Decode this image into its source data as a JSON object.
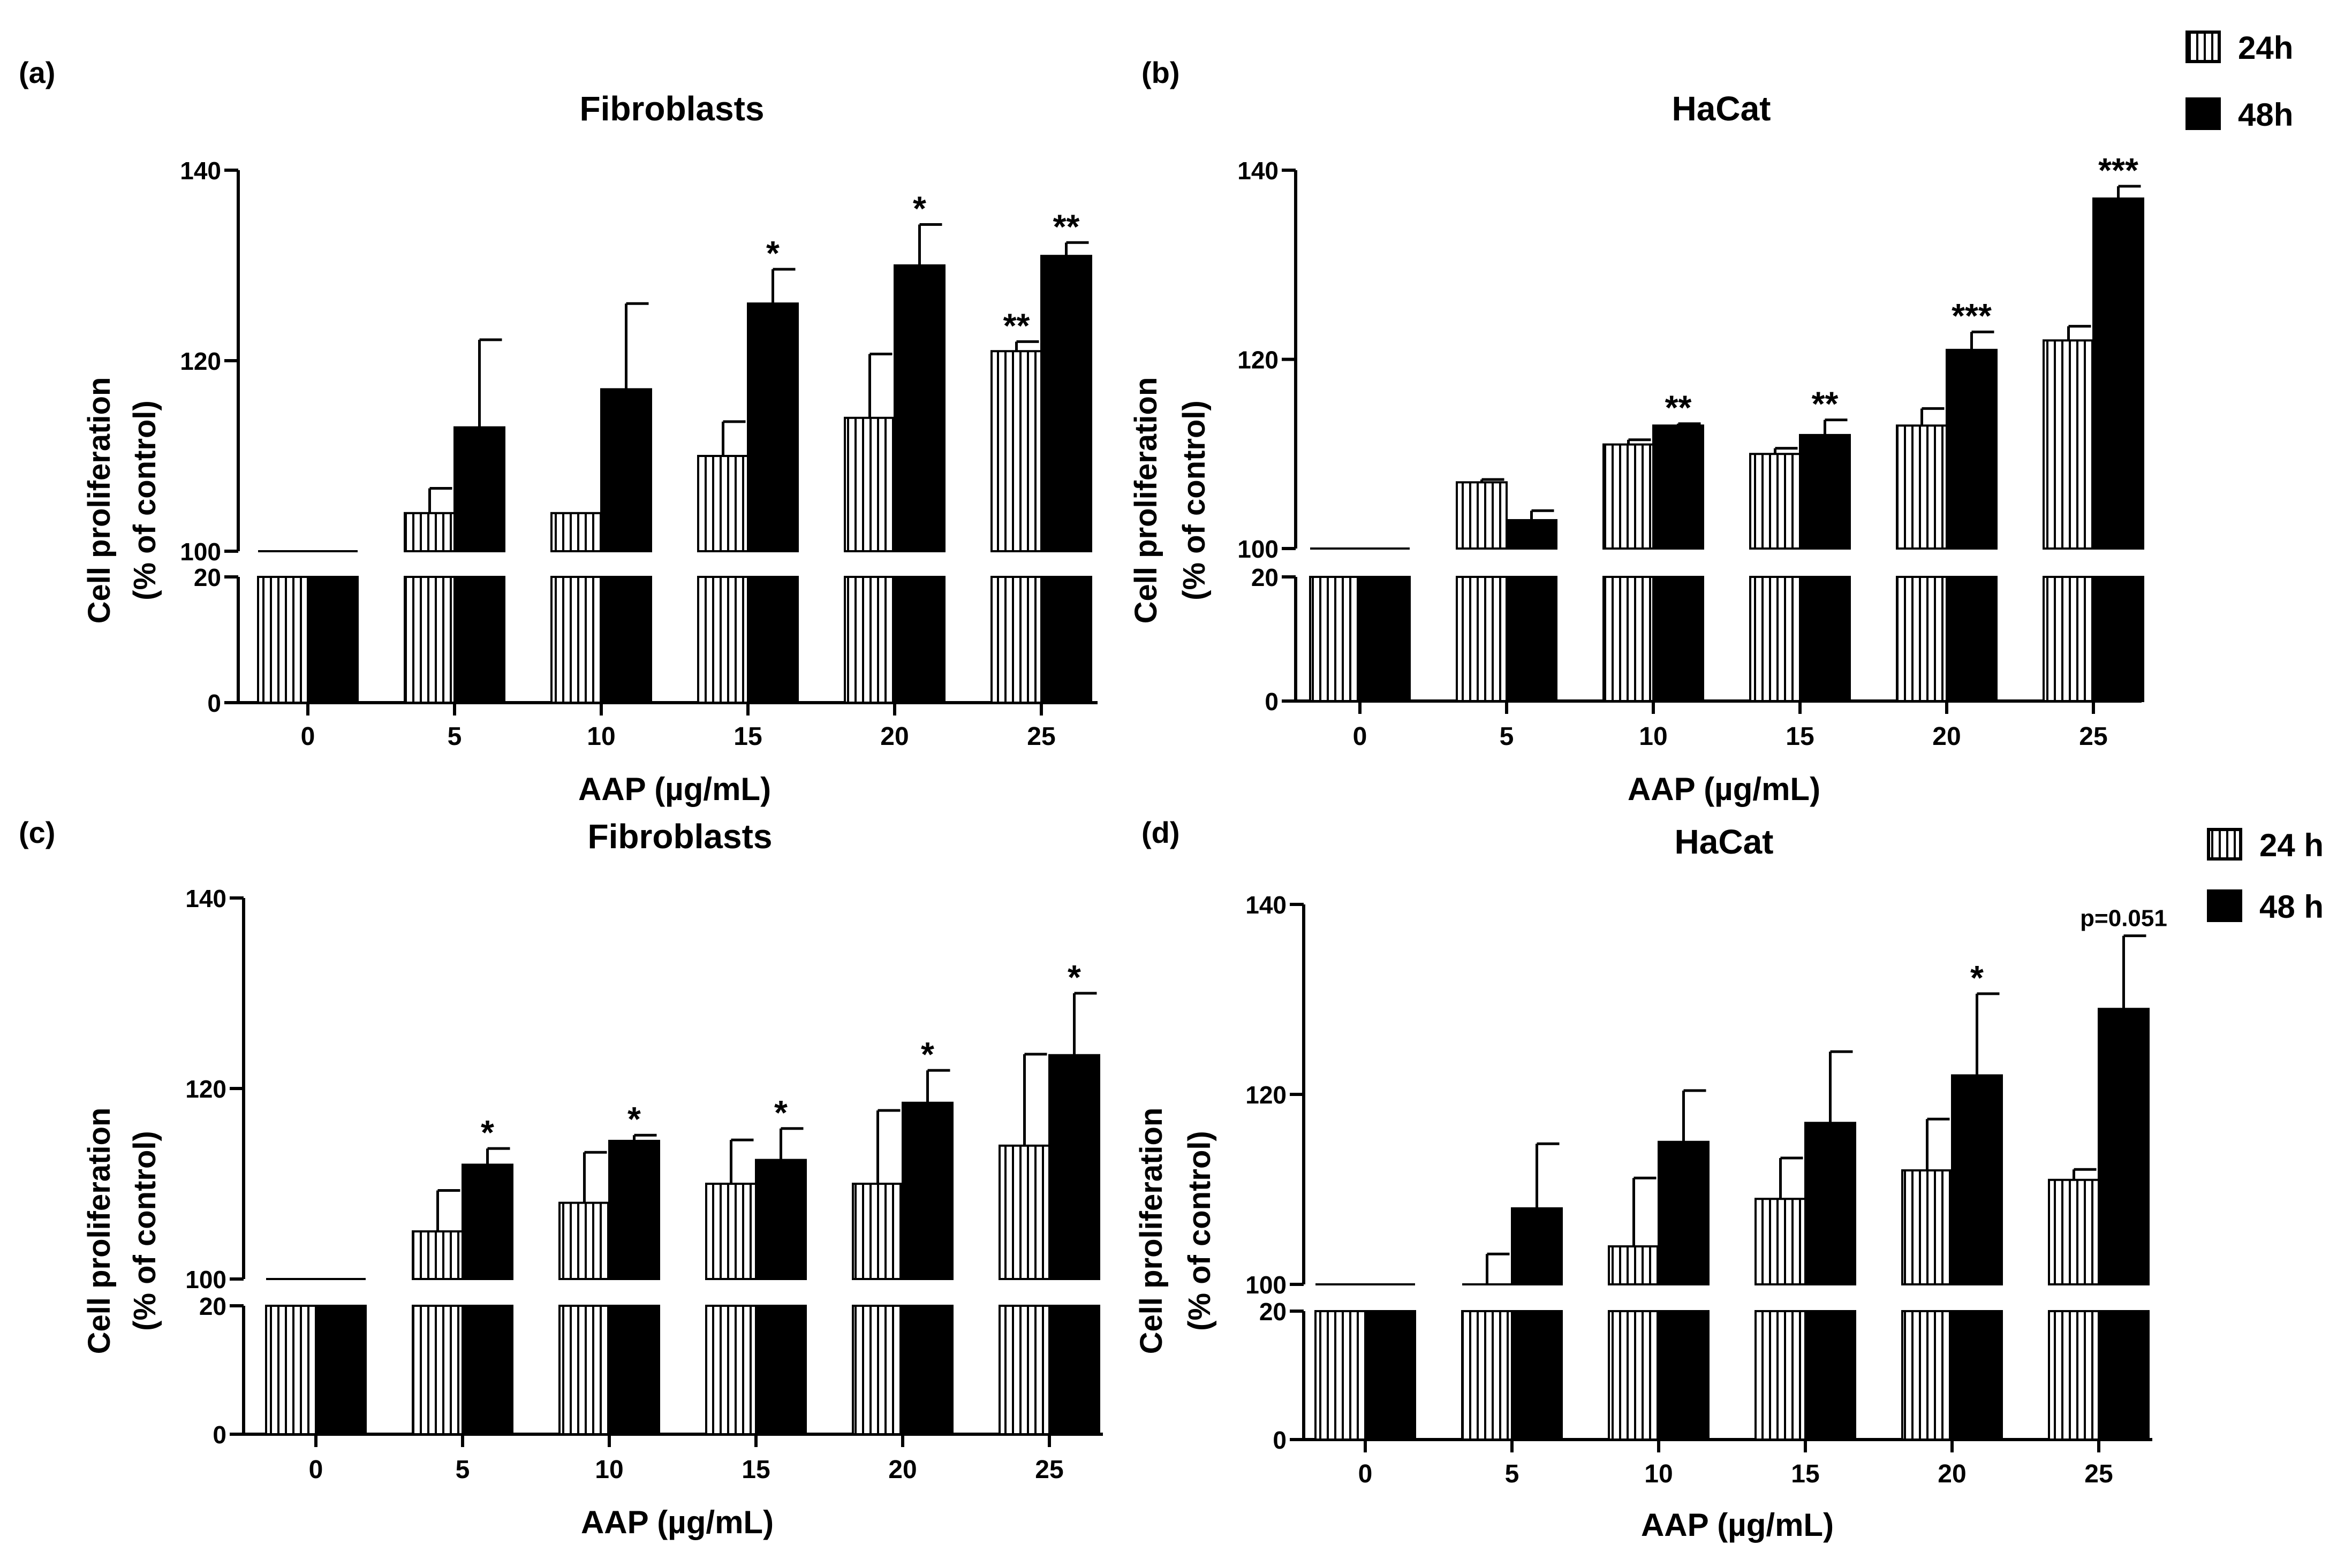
{
  "figure": {
    "legend_top": {
      "items": [
        "24h",
        "48h"
      ],
      "placement": "top-right"
    },
    "legend_bottom": {
      "items": [
        "24 h",
        "48 h"
      ],
      "placement": "right"
    }
  },
  "chart_data": [
    {
      "panel": "(a)",
      "type": "bar",
      "title": "Fibroblasts",
      "xlabel": "AAP (µg/mL)",
      "ylabel": [
        "Cell proliferation",
        "(% of control)"
      ],
      "categories": [
        "0",
        "5",
        "10",
        "15",
        "20",
        "25"
      ],
      "broken_axis": {
        "lower_range": [
          0,
          20
        ],
        "upper_range": [
          100,
          140
        ],
        "lower_ticks": [
          0,
          20
        ],
        "upper_ticks": [
          100,
          120,
          140
        ]
      },
      "series": [
        {
          "name": "24h",
          "values": [
            100,
            104,
            104,
            110,
            114,
            121
          ],
          "errors": [
            0,
            2.6,
            0,
            3.6,
            6.7,
            1.0
          ],
          "significance": [
            "",
            "",
            "",
            "",
            "",
            "**"
          ]
        },
        {
          "name": "48h",
          "values": [
            100,
            113,
            117,
            126,
            130,
            131
          ],
          "errors": [
            0,
            9.2,
            9.0,
            3.6,
            4.3,
            1.4
          ],
          "significance": [
            "",
            "",
            "",
            "*",
            "*",
            "**"
          ]
        }
      ]
    },
    {
      "panel": "(b)",
      "type": "bar",
      "title": "HaCat",
      "xlabel": "AAP (µg/mL)",
      "ylabel": [
        "Cell proliferation",
        "(% of control)"
      ],
      "categories": [
        "0",
        "5",
        "10",
        "15",
        "20",
        "25"
      ],
      "broken_axis": {
        "lower_range": [
          0,
          20
        ],
        "upper_range": [
          100,
          140
        ],
        "lower_ticks": [
          0,
          20
        ],
        "upper_ticks": [
          100,
          120,
          140
        ]
      },
      "series": [
        {
          "name": "24h",
          "values": [
            100,
            107,
            111,
            110,
            113,
            122
          ],
          "errors": [
            0,
            0.3,
            0.5,
            0.6,
            1.8,
            1.5
          ],
          "significance": [
            "",
            "",
            "",
            "",
            "",
            ""
          ]
        },
        {
          "name": "48h",
          "values": [
            100,
            103,
            113,
            112,
            121,
            137
          ],
          "errors": [
            0,
            1.0,
            0.2,
            1.6,
            1.9,
            1.3
          ],
          "significance": [
            "",
            "",
            "**",
            "**",
            "***",
            "***"
          ]
        }
      ]
    },
    {
      "panel": "(c)",
      "type": "bar",
      "title": "Fibroblasts",
      "xlabel": "AAP (µg/mL)",
      "ylabel": [
        "Cell proliferation",
        "(% of control)"
      ],
      "categories": [
        "0",
        "5",
        "10",
        "15",
        "20",
        "25"
      ],
      "broken_axis": {
        "lower_range": [
          0,
          20
        ],
        "upper_range": [
          100,
          140
        ],
        "lower_ticks": [
          0,
          20
        ],
        "upper_ticks": [
          100,
          120,
          140
        ]
      },
      "series": [
        {
          "name": "24 h",
          "values": [
            100,
            105,
            108,
            110,
            110,
            114
          ],
          "errors": [
            0,
            4.3,
            5.3,
            4.6,
            7.7,
            9.6
          ],
          "significance": [
            "",
            "",
            "",
            "",
            "",
            ""
          ]
        },
        {
          "name": "48 h",
          "values": [
            100,
            112,
            114.5,
            112.5,
            118.5,
            123.5
          ],
          "errors": [
            0,
            1.7,
            0.6,
            3.3,
            3.4,
            6.5
          ],
          "significance": [
            "",
            "*",
            "*",
            "*",
            "*",
            "*"
          ]
        }
      ]
    },
    {
      "panel": "(d)",
      "type": "bar",
      "title": "HaCat",
      "xlabel": "AAP (µg/mL)",
      "ylabel": [
        "Cell proliferation",
        "(% of control)"
      ],
      "categories": [
        "0",
        "5",
        "10",
        "15",
        "20",
        "25"
      ],
      "broken_axis": {
        "lower_range": [
          0,
          20
        ],
        "upper_range": [
          100,
          140
        ],
        "lower_ticks": [
          0,
          20
        ],
        "upper_ticks": [
          100,
          120,
          140
        ]
      },
      "series": [
        {
          "name": "24 h",
          "values": [
            100,
            100,
            104,
            109,
            112,
            111
          ],
          "errors": [
            0,
            3.2,
            7.2,
            4.3,
            5.4,
            1.1
          ],
          "significance": [
            "",
            "",
            "",
            "",
            "",
            ""
          ]
        },
        {
          "name": "48 h",
          "values": [
            100,
            108,
            115,
            117,
            122,
            129
          ],
          "errors": [
            0,
            6.8,
            5.4,
            7.5,
            8.6,
            7.7
          ],
          "significance": [
            "",
            "",
            "",
            "",
            "*",
            "p=0.051"
          ]
        }
      ]
    }
  ]
}
